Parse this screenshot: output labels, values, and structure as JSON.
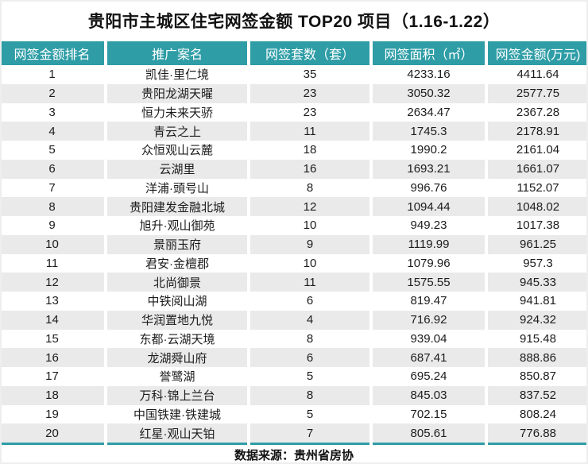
{
  "title": "贵阳市主城区住宅网签金额 TOP20 项目（1.16-1.22）",
  "footer": {
    "source_label": "数据来源：贵州省房协"
  },
  "colors": {
    "header_bg": "#2E9DA6",
    "header_text": "#FFFFFF",
    "stripe_bg": "#EAEAEA",
    "text": "#1C1C1C",
    "accent_line": "#2E9DA6"
  },
  "chart_data": {
    "type": "table",
    "title": "贵阳市主城区住宅网签金额 TOP20 项目（1.16-1.22）",
    "columns": [
      {
        "key": "rank",
        "label": "网签金额排名"
      },
      {
        "key": "project",
        "label": "推广案名"
      },
      {
        "key": "units",
        "label": "网签套数（套）"
      },
      {
        "key": "area",
        "label": "网签面积（㎡）"
      },
      {
        "key": "amount",
        "label": "网签金额(万元)"
      }
    ],
    "rows": [
      [
        "1",
        "凯佳·里仁境",
        "35",
        "4233.16",
        "4411.64"
      ],
      [
        "2",
        "贵阳龙湖天曜",
        "23",
        "3050.32",
        "2577.75"
      ],
      [
        "3",
        "恒力未来天骄",
        "23",
        "2634.47",
        "2367.28"
      ],
      [
        "4",
        "青云之上",
        "11",
        "1745.3",
        "2178.91"
      ],
      [
        "5",
        "众恒观山云麓",
        "18",
        "1990.2",
        "2161.04"
      ],
      [
        "6",
        "云湖里",
        "16",
        "1693.21",
        "1661.07"
      ],
      [
        "7",
        "洋浦·頭号山",
        "8",
        "996.76",
        "1152.07"
      ],
      [
        "8",
        "贵阳建发金融北城",
        "12",
        "1094.44",
        "1048.02"
      ],
      [
        "9",
        "旭升·观山御苑",
        "10",
        "949.23",
        "1017.38"
      ],
      [
        "10",
        "景丽玉府",
        "9",
        "1119.99",
        "961.25"
      ],
      [
        "11",
        "君安·金檀郡",
        "10",
        "1079.96",
        "957.3"
      ],
      [
        "12",
        "北尚御景",
        "11",
        "1575.55",
        "945.33"
      ],
      [
        "13",
        "中铁阅山湖",
        "6",
        "819.47",
        "941.81"
      ],
      [
        "14",
        "华润置地九悦",
        "4",
        "716.92",
        "924.32"
      ],
      [
        "15",
        "东都·云湖天境",
        "8",
        "939.04",
        "915.48"
      ],
      [
        "16",
        "龙湖舜山府",
        "6",
        "687.41",
        "888.86"
      ],
      [
        "17",
        "誉鹭湖",
        "5",
        "695.24",
        "850.87"
      ],
      [
        "18",
        "万科·锦上兰台",
        "8",
        "845.03",
        "837.52"
      ],
      [
        "19",
        "中国铁建·铁建城",
        "5",
        "702.15",
        "808.24"
      ],
      [
        "20",
        "红星·观山天铂",
        "7",
        "805.61",
        "776.88"
      ]
    ]
  }
}
